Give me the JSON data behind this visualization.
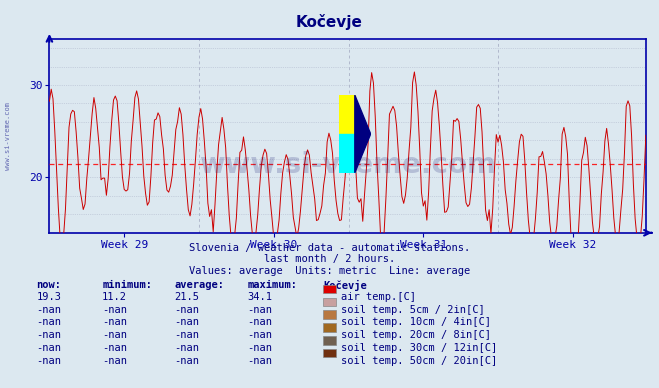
{
  "title": "Kočevje",
  "title_color": "#000080",
  "bg_color": "#dce8f0",
  "plot_bg_color": "#dce8f0",
  "line_color": "#cc0000",
  "avg_line_color": "#ff0000",
  "avg_value": 21.5,
  "y_min": 14,
  "y_max": 35,
  "y_ticks": [
    20,
    30
  ],
  "x_week_labels": [
    "Week 29",
    "Week 30",
    "Week 31",
    "Week 32"
  ],
  "subtitle1": "Slovenia / weather data - automatic stations.",
  "subtitle2": "last month / 2 hours.",
  "subtitle3": "Values: average  Units: metric  Line: average",
  "text_color": "#000080",
  "grid_color": "#b0b8cc",
  "axis_color": "#0000aa",
  "watermark": "www.si-vreme.com",
  "watermark_color": "#000060",
  "watermark_alpha": 0.18,
  "legend_entries": [
    {
      "label": "air temp.[C]",
      "color": "#dd0000"
    },
    {
      "label": "soil temp. 5cm / 2in[C]",
      "color": "#c8a0a0"
    },
    {
      "label": "soil temp. 10cm / 4in[C]",
      "color": "#b87840"
    },
    {
      "label": "soil temp. 20cm / 8in[C]",
      "color": "#a06820"
    },
    {
      "label": "soil temp. 30cm / 12in[C]",
      "color": "#706050"
    },
    {
      "label": "soil temp. 50cm / 20in[C]",
      "color": "#703010"
    }
  ],
  "table_headers": [
    "now:",
    "minimum:",
    "average:",
    "maximum:",
    "Kočevje"
  ],
  "table_rows": [
    [
      "19.3",
      "11.2",
      "21.5",
      "34.1"
    ],
    [
      "-nan",
      "-nan",
      "-nan",
      "-nan"
    ],
    [
      "-nan",
      "-nan",
      "-nan",
      "-nan"
    ],
    [
      "-nan",
      "-nan",
      "-nan",
      "-nan"
    ],
    [
      "-nan",
      "-nan",
      "-nan",
      "-nan"
    ],
    [
      "-nan",
      "-nan",
      "-nan",
      "-nan"
    ]
  ],
  "icon_yellow": "#ffff00",
  "icon_cyan": "#00ffff",
  "icon_blue": "#000080"
}
